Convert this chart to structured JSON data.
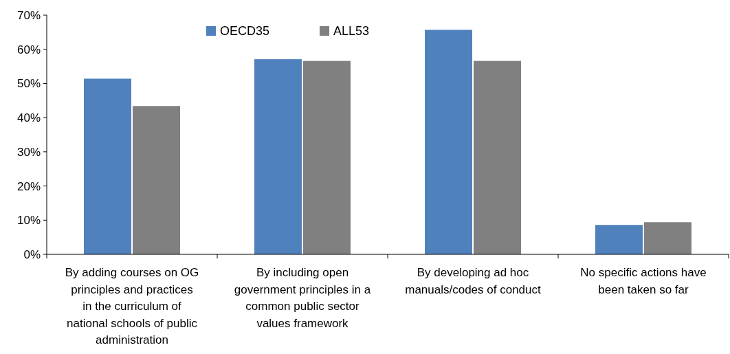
{
  "chart_data": {
    "type": "bar",
    "categories": [
      "By adding courses on OG principles and practices in the curriculum of national schools of public administration",
      "By including open government principles in a common public sector values framework",
      "By developing ad hoc manuals/codes of conduct",
      "No specific actions have been taken so far"
    ],
    "series": [
      {
        "name": "OECD35",
        "color": "#4f81bd",
        "values": [
          51.4,
          57.1,
          65.7,
          8.6
        ]
      },
      {
        "name": "ALL53",
        "color": "#808080",
        "values": [
          43.4,
          56.6,
          56.6,
          9.4
        ]
      }
    ],
    "ylim": [
      0,
      70
    ],
    "yticks": [
      {
        "value": 0,
        "label": "0%"
      },
      {
        "value": 10,
        "label": "10%"
      },
      {
        "value": 20,
        "label": "20%"
      },
      {
        "value": 30,
        "label": "30%"
      },
      {
        "value": 40,
        "label": "40%"
      },
      {
        "value": 50,
        "label": "50%"
      },
      {
        "value": 60,
        "label": "60%"
      },
      {
        "value": 70,
        "label": "70%"
      }
    ],
    "grid": false,
    "legend": "top"
  }
}
